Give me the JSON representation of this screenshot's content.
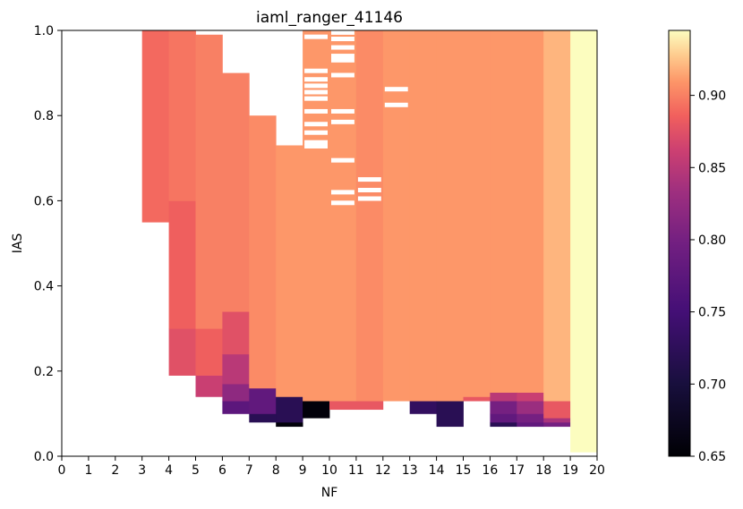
{
  "chart_data": {
    "type": "heatmap",
    "title": "iaml_ranger_41146",
    "xlabel": "NF",
    "ylabel": "IAS",
    "xlim": [
      0,
      20
    ],
    "ylim": [
      0.0,
      1.0
    ],
    "x_ticks": [
      "0",
      "1",
      "2",
      "3",
      "4",
      "5",
      "6",
      "7",
      "8",
      "9",
      "10",
      "11",
      "12",
      "13",
      "14",
      "15",
      "16",
      "17",
      "18",
      "19",
      "20"
    ],
    "y_ticks": [
      "0.0",
      "0.2",
      "0.4",
      "0.6",
      "0.8",
      "1.0"
    ],
    "colormap": "magma",
    "colorbar": {
      "range": [
        0.65,
        0.945
      ],
      "ticks": [
        "0.65",
        "0.70",
        "0.75",
        "0.80",
        "0.85",
        "0.90"
      ]
    },
    "columns": [
      {
        "nf": 4,
        "ias_min": 0.55,
        "ias_max": 1.0,
        "bands": [
          {
            "from": 0.55,
            "to": 1.0,
            "value": 0.89
          }
        ]
      },
      {
        "nf": 5,
        "ias_min": 0.19,
        "ias_max": 1.0,
        "bands": [
          {
            "from": 0.19,
            "to": 0.3,
            "value": 0.875
          },
          {
            "from": 0.3,
            "to": 0.6,
            "value": 0.885
          },
          {
            "from": 0.6,
            "to": 1.0,
            "value": 0.895
          }
        ]
      },
      {
        "nf": 6,
        "ias_min": 0.14,
        "ias_max": 0.99,
        "bands": [
          {
            "from": 0.14,
            "to": 0.19,
            "value": 0.86
          },
          {
            "from": 0.19,
            "to": 0.3,
            "value": 0.885
          },
          {
            "from": 0.3,
            "to": 0.99,
            "value": 0.9
          }
        ]
      },
      {
        "nf": 7,
        "ias_min": 0.1,
        "ias_max": 0.9,
        "bands": [
          {
            "from": 0.1,
            "to": 0.13,
            "value": 0.775
          },
          {
            "from": 0.13,
            "to": 0.17,
            "value": 0.82
          },
          {
            "from": 0.17,
            "to": 0.24,
            "value": 0.85
          },
          {
            "from": 0.24,
            "to": 0.34,
            "value": 0.875
          },
          {
            "from": 0.34,
            "to": 0.9,
            "value": 0.9
          }
        ]
      },
      {
        "nf": 8,
        "ias_min": 0.08,
        "ias_max": 0.8,
        "bands": [
          {
            "from": 0.08,
            "to": 0.1,
            "value": 0.72
          },
          {
            "from": 0.1,
            "to": 0.16,
            "value": 0.78
          },
          {
            "from": 0.16,
            "to": 0.8,
            "value": 0.905
          }
        ]
      },
      {
        "nf": 9,
        "ias_min": 0.07,
        "ias_max": 0.73,
        "bands": [
          {
            "from": 0.07,
            "to": 0.08,
            "value": 0.655
          },
          {
            "from": 0.08,
            "to": 0.14,
            "value": 0.72
          },
          {
            "from": 0.14,
            "to": 0.73,
            "value": 0.91
          }
        ]
      },
      {
        "nf": 10,
        "ias_min": 0.09,
        "ias_max": 1.0,
        "bands": [
          {
            "from": 0.09,
            "to": 0.13,
            "value": 0.655
          },
          {
            "from": 0.13,
            "to": 1.0,
            "value": 0.91
          }
        ]
      },
      {
        "nf": 11,
        "ias_min": 0.11,
        "ias_max": 1.0,
        "bands": [
          {
            "from": 0.11,
            "to": 0.13,
            "value": 0.88
          },
          {
            "from": 0.13,
            "to": 1.0,
            "value": 0.91
          }
        ]
      },
      {
        "nf": 12,
        "ias_min": 0.11,
        "ias_max": 1.0,
        "bands": [
          {
            "from": 0.11,
            "to": 0.13,
            "value": 0.88
          },
          {
            "from": 0.13,
            "to": 1.0,
            "value": 0.905
          }
        ]
      },
      {
        "nf": 13,
        "ias_min": 0.13,
        "ias_max": 1.0,
        "bands": [
          {
            "from": 0.13,
            "to": 1.0,
            "value": 0.91
          }
        ]
      },
      {
        "nf": 14,
        "ias_min": 0.1,
        "ias_max": 1.0,
        "bands": [
          {
            "from": 0.1,
            "to": 0.13,
            "value": 0.73
          },
          {
            "from": 0.13,
            "to": 1.0,
            "value": 0.91
          }
        ]
      },
      {
        "nf": 15,
        "ias_min": 0.07,
        "ias_max": 1.0,
        "bands": [
          {
            "from": 0.07,
            "to": 0.13,
            "value": 0.72
          },
          {
            "from": 0.13,
            "to": 1.0,
            "value": 0.91
          }
        ]
      },
      {
        "nf": 16,
        "ias_min": 0.13,
        "ias_max": 1.0,
        "bands": [
          {
            "from": 0.13,
            "to": 0.14,
            "value": 0.88
          },
          {
            "from": 0.14,
            "to": 1.0,
            "value": 0.91
          }
        ]
      },
      {
        "nf": 17,
        "ias_min": 0.07,
        "ias_max": 1.0,
        "bands": [
          {
            "from": 0.07,
            "to": 0.08,
            "value": 0.72
          },
          {
            "from": 0.08,
            "to": 0.1,
            "value": 0.78
          },
          {
            "from": 0.1,
            "to": 0.13,
            "value": 0.8
          },
          {
            "from": 0.13,
            "to": 0.15,
            "value": 0.85
          },
          {
            "from": 0.15,
            "to": 1.0,
            "value": 0.91
          }
        ]
      },
      {
        "nf": 18,
        "ias_min": 0.07,
        "ias_max": 1.0,
        "bands": [
          {
            "from": 0.07,
            "to": 0.08,
            "value": 0.78
          },
          {
            "from": 0.08,
            "to": 0.1,
            "value": 0.8
          },
          {
            "from": 0.1,
            "to": 0.13,
            "value": 0.83
          },
          {
            "from": 0.13,
            "to": 0.15,
            "value": 0.86
          },
          {
            "from": 0.15,
            "to": 1.0,
            "value": 0.91
          }
        ]
      },
      {
        "nf": 19,
        "ias_min": 0.07,
        "ias_max": 1.0,
        "bands": [
          {
            "from": 0.07,
            "to": 0.08,
            "value": 0.8
          },
          {
            "from": 0.08,
            "to": 0.09,
            "value": 0.84
          },
          {
            "from": 0.09,
            "to": 0.13,
            "value": 0.88
          },
          {
            "from": 0.13,
            "to": 1.0,
            "value": 0.92
          }
        ]
      },
      {
        "nf": 20,
        "ias_min": 0.01,
        "ias_max": 1.0,
        "bands": [
          {
            "from": 0.01,
            "to": 1.0,
            "value": 0.945
          }
        ]
      }
    ],
    "missing": [
      {
        "nf": 10,
        "ias": [
          0.728,
          0.737,
          0.76,
          0.78,
          0.81,
          0.84,
          0.855,
          0.87,
          0.885,
          0.905,
          0.985
        ]
      },
      {
        "nf": 11,
        "ias": [
          0.595,
          0.62,
          0.695,
          0.785,
          0.81,
          0.895,
          0.93,
          0.94,
          0.96,
          0.98,
          0.995
        ]
      },
      {
        "nf": 12,
        "ias": [
          0.605,
          0.625,
          0.65
        ]
      },
      {
        "nf": 13,
        "ias": [
          0.825,
          0.862
        ]
      }
    ]
  }
}
